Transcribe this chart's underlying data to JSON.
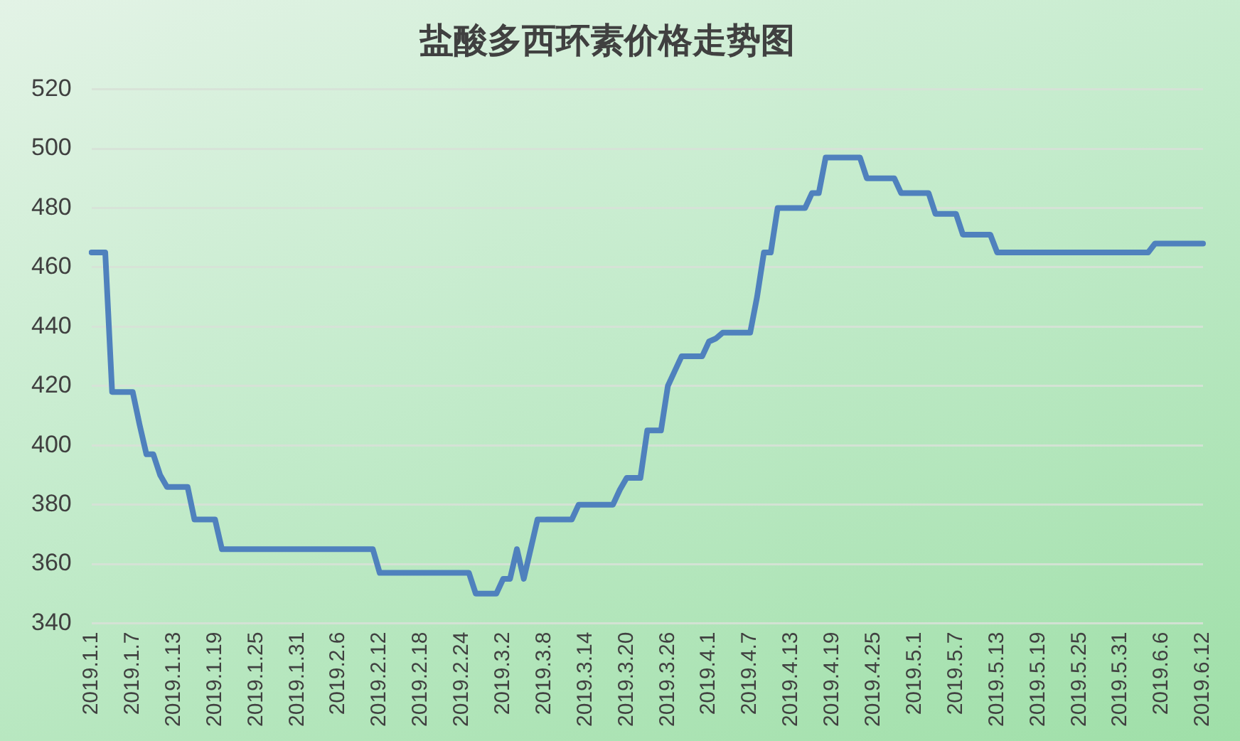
{
  "chart_data": {
    "type": "line",
    "title": "盐酸多西环素价格走势图",
    "categories": [
      "2019.1.1",
      null,
      null,
      null,
      null,
      null,
      "2019.1.7",
      null,
      null,
      null,
      null,
      null,
      "2019.1.13",
      null,
      null,
      null,
      null,
      null,
      "2019.1.19",
      null,
      null,
      null,
      null,
      null,
      "2019.1.25",
      null,
      null,
      null,
      null,
      null,
      "2019.1.31",
      null,
      null,
      null,
      null,
      null,
      "2019.2.6",
      null,
      null,
      null,
      null,
      null,
      "2019.2.12",
      null,
      null,
      null,
      null,
      null,
      "2019.2.18",
      null,
      null,
      null,
      null,
      null,
      "2019.2.24",
      null,
      null,
      null,
      null,
      null,
      "2019.3.2",
      null,
      null,
      null,
      null,
      null,
      "2019.3.8",
      null,
      null,
      null,
      null,
      null,
      "2019.3.14",
      null,
      null,
      null,
      null,
      null,
      "2019.3.20",
      null,
      null,
      null,
      null,
      null,
      "2019.3.26",
      null,
      null,
      null,
      null,
      null,
      "2019.4.1",
      null,
      null,
      null,
      null,
      null,
      "2019.4.7",
      null,
      null,
      null,
      null,
      null,
      "2019.4.13",
      null,
      null,
      null,
      null,
      null,
      "2019.4.19",
      null,
      null,
      null,
      null,
      null,
      "2019.4.25",
      null,
      null,
      null,
      null,
      null,
      "2019.5.1",
      null,
      null,
      null,
      null,
      null,
      "2019.5.7",
      null,
      null,
      null,
      null,
      null,
      "2019.5.13",
      null,
      null,
      null,
      null,
      null,
      "2019.5.19",
      null,
      null,
      null,
      null,
      null,
      "2019.5.25",
      null,
      null,
      null,
      null,
      null,
      "2019.5.31",
      null,
      null,
      null,
      null,
      null,
      "2019.6.6",
      null,
      null,
      null,
      null,
      null,
      "2019.6.12"
    ],
    "series": [
      {
        "color": "#4f81bd",
        "values": [
          465,
          465,
          465,
          418,
          418,
          418,
          418,
          407,
          397,
          397,
          390,
          386,
          386,
          386,
          386,
          375,
          375,
          375,
          375,
          365,
          365,
          365,
          365,
          365,
          365,
          365,
          365,
          365,
          365,
          365,
          365,
          365,
          365,
          365,
          365,
          365,
          365,
          365,
          365,
          365,
          365,
          365,
          357,
          357,
          357,
          357,
          357,
          357,
          357,
          357,
          357,
          357,
          357,
          357,
          357,
          357,
          350,
          350,
          350,
          350,
          355,
          355,
          365,
          355,
          365,
          375,
          375,
          375,
          375,
          375,
          375,
          380,
          380,
          380,
          380,
          380,
          380,
          385,
          389,
          389,
          389,
          405,
          405,
          405,
          420,
          425,
          430,
          430,
          430,
          430,
          435,
          436,
          438,
          438,
          438,
          438,
          438,
          450,
          465,
          465,
          480,
          480,
          480,
          480,
          480,
          485,
          485,
          497,
          497,
          497,
          497,
          497,
          497,
          490,
          490,
          490,
          490,
          490,
          485,
          485,
          485,
          485,
          485,
          478,
          478,
          478,
          478,
          471,
          471,
          471,
          471,
          471,
          465,
          465,
          465,
          465,
          465,
          465,
          465,
          465,
          465,
          465,
          465,
          465,
          465,
          465,
          465,
          465,
          465,
          465,
          465,
          465,
          465,
          465,
          465,
          468,
          468,
          468,
          468,
          468,
          468,
          468,
          468
        ]
      }
    ],
    "ylim": [
      340,
      520
    ],
    "yticks": [
      340,
      360,
      380,
      400,
      420,
      440,
      460,
      480,
      500,
      520
    ],
    "grid": "y",
    "marker": "none",
    "line_style": "solid"
  }
}
